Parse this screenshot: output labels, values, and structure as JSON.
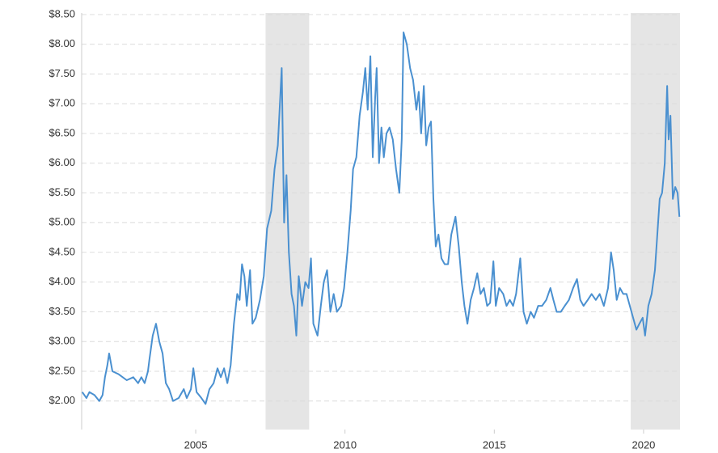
{
  "chart_data": {
    "type": "line",
    "x": [
      2001.2,
      2001.34,
      2001.44,
      2001.61,
      2001.77,
      2001.88,
      2001.96,
      2002.04,
      2002.1,
      2002.21,
      2002.42,
      2002.69,
      2002.91,
      2003.07,
      2003.18,
      2003.29,
      2003.4,
      2003.45,
      2003.56,
      2003.67,
      2003.78,
      2003.89,
      2004.0,
      2004.11,
      2004.24,
      2004.43,
      2004.6,
      2004.7,
      2004.84,
      2004.92,
      2005.03,
      2005.19,
      2005.33,
      2005.46,
      2005.6,
      2005.73,
      2005.84,
      2005.95,
      2006.06,
      2006.17,
      2006.28,
      2006.39,
      2006.47,
      2006.55,
      2006.63,
      2006.71,
      2006.82,
      2006.9,
      2007.01,
      2007.15,
      2007.28,
      2007.39,
      2007.53,
      2007.64,
      2007.75,
      2007.88,
      2007.96,
      2008.04,
      2008.12,
      2008.21,
      2008.29,
      2008.37,
      2008.45,
      2008.56,
      2008.67,
      2008.78,
      2008.86,
      2008.94,
      2009.08,
      2009.19,
      2009.29,
      2009.4,
      2009.51,
      2009.62,
      2009.73,
      2009.87,
      2009.97,
      2010.08,
      2010.19,
      2010.27,
      2010.38,
      2010.49,
      2010.6,
      2010.68,
      2010.76,
      2010.85,
      2010.93,
      2011.01,
      2011.06,
      2011.14,
      2011.22,
      2011.3,
      2011.39,
      2011.49,
      2011.6,
      2011.71,
      2011.82,
      2011.9,
      2011.96,
      2012.07,
      2012.18,
      2012.28,
      2012.39,
      2012.47,
      2012.55,
      2012.64,
      2012.72,
      2012.8,
      2012.88,
      2012.96,
      2013.04,
      2013.13,
      2013.23,
      2013.34,
      2013.45,
      2013.56,
      2013.7,
      2013.81,
      2013.91,
      2014.0,
      2014.1,
      2014.21,
      2014.32,
      2014.43,
      2014.54,
      2014.65,
      2014.76,
      2014.86,
      2014.97,
      2015.05,
      2015.16,
      2015.3,
      2015.41,
      2015.52,
      2015.63,
      2015.73,
      2015.87,
      2015.98,
      2016.09,
      2016.22,
      2016.33,
      2016.47,
      2016.6,
      2016.74,
      2016.88,
      2016.98,
      2017.09,
      2017.23,
      2017.36,
      2017.5,
      2017.64,
      2017.77,
      2017.88,
      2017.99,
      2018.13,
      2018.26,
      2018.4,
      2018.53,
      2018.67,
      2018.81,
      2018.91,
      2019.0,
      2019.1,
      2019.21,
      2019.32,
      2019.43,
      2019.54,
      2019.65,
      2019.76,
      2019.86,
      2019.97,
      2020.05,
      2020.16,
      2020.27,
      2020.38,
      2020.46,
      2020.54,
      2020.62,
      2020.71,
      2020.79,
      2020.84,
      2020.9,
      2020.98,
      2021.06,
      2021.14,
      2021.2
    ],
    "series": [
      {
        "color": "#4a90d0",
        "values": [
          2.15,
          2.05,
          2.15,
          2.1,
          2.0,
          2.1,
          2.4,
          2.6,
          2.8,
          2.5,
          2.45,
          2.35,
          2.4,
          2.3,
          2.4,
          2.3,
          2.5,
          2.7,
          3.1,
          3.3,
          3.0,
          2.8,
          2.3,
          2.2,
          2.0,
          2.05,
          2.2,
          2.05,
          2.2,
          2.55,
          2.15,
          2.05,
          1.95,
          2.2,
          2.3,
          2.55,
          2.4,
          2.55,
          2.3,
          2.6,
          3.3,
          3.8,
          3.7,
          4.3,
          4.1,
          3.6,
          4.2,
          3.3,
          3.4,
          3.7,
          4.1,
          4.9,
          5.2,
          5.9,
          6.3,
          7.6,
          5.0,
          5.8,
          4.5,
          3.8,
          3.6,
          3.1,
          4.1,
          3.6,
          4.0,
          3.9,
          4.4,
          3.3,
          3.1,
          3.6,
          4.0,
          4.2,
          3.5,
          3.8,
          3.5,
          3.6,
          3.9,
          4.5,
          5.2,
          5.9,
          6.1,
          6.8,
          7.2,
          7.6,
          6.9,
          7.8,
          6.1,
          7.1,
          7.6,
          6.0,
          6.6,
          6.1,
          6.5,
          6.6,
          6.4,
          5.9,
          5.5,
          6.4,
          8.2,
          8.0,
          7.6,
          7.4,
          6.9,
          7.2,
          6.5,
          7.3,
          6.3,
          6.6,
          6.7,
          5.4,
          4.6,
          4.8,
          4.4,
          4.3,
          4.3,
          4.8,
          5.1,
          4.6,
          4.0,
          3.6,
          3.3,
          3.7,
          3.9,
          4.15,
          3.8,
          3.9,
          3.6,
          3.65,
          4.35,
          3.6,
          3.9,
          3.8,
          3.6,
          3.7,
          3.6,
          3.8,
          4.4,
          3.5,
          3.3,
          3.5,
          3.4,
          3.6,
          3.6,
          3.7,
          3.9,
          3.7,
          3.5,
          3.5,
          3.6,
          3.7,
          3.9,
          4.05,
          3.7,
          3.6,
          3.7,
          3.8,
          3.7,
          3.8,
          3.6,
          3.9,
          4.5,
          4.2,
          3.7,
          3.9,
          3.8,
          3.8,
          3.6,
          3.4,
          3.2,
          3.3,
          3.4,
          3.1,
          3.6,
          3.8,
          4.2,
          4.8,
          5.4,
          5.5,
          6.0,
          7.3,
          6.4,
          6.8,
          5.4,
          5.6,
          5.5,
          5.1
        ]
      }
    ],
    "shaded_periods": [
      [
        2007.34,
        2008.8
      ],
      [
        2019.57,
        2021.22
      ]
    ],
    "xlim": [
      2001.18,
      2021.22
    ],
    "xticks": [
      2005,
      2010,
      2015,
      2020
    ],
    "ylim": [
      1.52,
      8.5
    ],
    "yticks": [
      {
        "value": 2.0,
        "label": "$2.00"
      },
      {
        "value": 2.5,
        "label": "$2.50"
      },
      {
        "value": 3.0,
        "label": "$3.00"
      },
      {
        "value": 3.5,
        "label": "$3.50"
      },
      {
        "value": 4.0,
        "label": "$4.00"
      },
      {
        "value": 4.5,
        "label": "$4.50"
      },
      {
        "value": 5.0,
        "label": "$5.00"
      },
      {
        "value": 5.5,
        "label": "$5.50"
      },
      {
        "value": 6.0,
        "label": "$6.00"
      },
      {
        "value": 6.5,
        "label": "$6.50"
      },
      {
        "value": 7.0,
        "label": "$7.00"
      },
      {
        "value": 7.5,
        "label": "$7.50"
      },
      {
        "value": 8.0,
        "label": "$8.00"
      },
      {
        "value": 8.5,
        "label": "$8.50"
      }
    ],
    "grid": true
  }
}
